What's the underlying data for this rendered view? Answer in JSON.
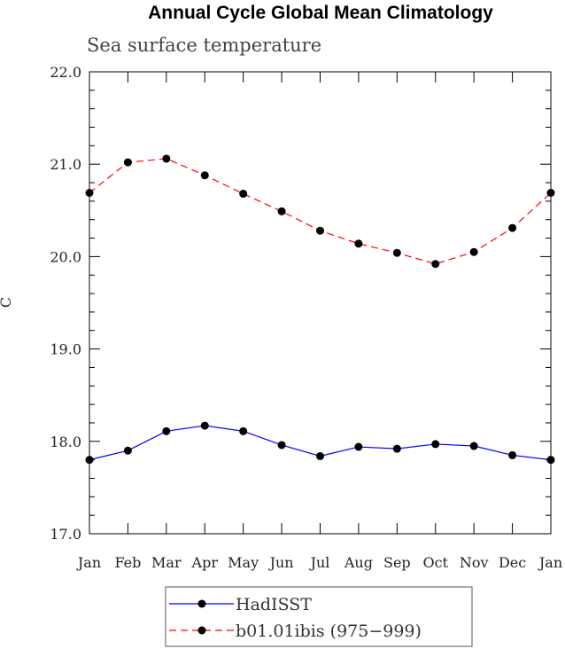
{
  "chart_data": {
    "type": "line",
    "title": "Annual Cycle Global Mean Climatology",
    "subtitle": "Sea surface temperature",
    "xlabel": "",
    "ylabel": "C",
    "categories": [
      "Jan",
      "Feb",
      "Mar",
      "Apr",
      "May",
      "Jun",
      "Jul",
      "Aug",
      "Sep",
      "Oct",
      "Nov",
      "Dec",
      "Jan"
    ],
    "ylim": [
      17.0,
      22.0
    ],
    "yticks": [
      "17.0",
      "18.0",
      "19.0",
      "20.0",
      "21.0",
      "22.0"
    ],
    "grid": false,
    "legend_position": "bottom",
    "series": [
      {
        "name": "HadISST",
        "color": "#0000ff",
        "dash": "solid",
        "values": [
          17.8,
          17.9,
          18.11,
          18.17,
          18.11,
          17.96,
          17.84,
          17.94,
          17.92,
          17.97,
          17.95,
          17.85,
          17.8
        ]
      },
      {
        "name": "b01.01ibis (975−999)",
        "color": "#ff0000",
        "dash": "dashed",
        "values": [
          20.69,
          21.02,
          21.06,
          20.88,
          20.68,
          20.49,
          20.28,
          20.14,
          20.04,
          19.92,
          20.05,
          20.31,
          20.69
        ]
      }
    ]
  }
}
